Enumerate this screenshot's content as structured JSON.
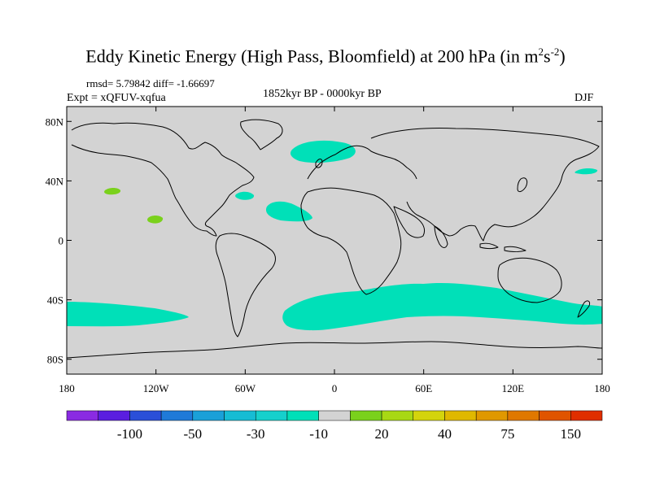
{
  "title": {
    "main": "Eddy Kinetic Energy (High Pass, Bloomfield) at 200 hPa (in m",
    "sup1": "2",
    "mid": "s",
    "sup2": "-2",
    "end": ")"
  },
  "stats": "rmsd= 5.79842 diff= -1.66697",
  "expt": "Expt = xQFUV-xqfua",
  "period": "1852kyr BP - 0000kyr BP",
  "season": "DJF",
  "colors": {
    "land_bg": "#d3d3d3",
    "coast": "#000000",
    "negative_small": "#00e0b8",
    "positive_small": "#7ad11c"
  },
  "map": {
    "lon_ticks": [
      "180",
      "120W",
      "60W",
      "0",
      "60E",
      "120E",
      "180"
    ],
    "lat_ticks": [
      "80N",
      "40N",
      "0",
      "40S",
      "80S"
    ],
    "anomalies": [
      {
        "name": "north-atlantic-negative",
        "class": "-10"
      },
      {
        "name": "subtropical-atlantic-negative",
        "class": "-10"
      },
      {
        "name": "mid-atlantic-negative",
        "class": "-10"
      },
      {
        "name": "north-pacific-east-negative",
        "class": "-10"
      },
      {
        "name": "southern-ocean-indian-negative",
        "class": "-10"
      },
      {
        "name": "southern-ocean-pacific-negative",
        "class": "-10"
      },
      {
        "name": "southern-ocean-dateline-negative",
        "class": "-10"
      },
      {
        "name": "north-pacific-positive-1",
        "class": "20"
      },
      {
        "name": "north-pacific-positive-2",
        "class": "20"
      }
    ]
  },
  "colorbar": {
    "colors": [
      "#8a2be2",
      "#5a1ee0",
      "#2a4fd8",
      "#1f7ad8",
      "#1aa0d8",
      "#16bcd4",
      "#16d0cc",
      "#00e0b8",
      "#d3d3d3",
      "#7ad11c",
      "#a8d814",
      "#d4d40c",
      "#e0b800",
      "#e09800",
      "#e07800",
      "#e05400",
      "#e02e00"
    ],
    "labels": [
      {
        "text": "-100",
        "after_box": 2
      },
      {
        "text": "-50",
        "after_box": 4
      },
      {
        "text": "-30",
        "after_box": 6
      },
      {
        "text": "-10",
        "after_box": 8
      },
      {
        "text": "20",
        "after_box": 10
      },
      {
        "text": "40",
        "after_box": 12
      },
      {
        "text": "75",
        "after_box": 14
      },
      {
        "text": "150",
        "after_box": 16
      }
    ]
  }
}
